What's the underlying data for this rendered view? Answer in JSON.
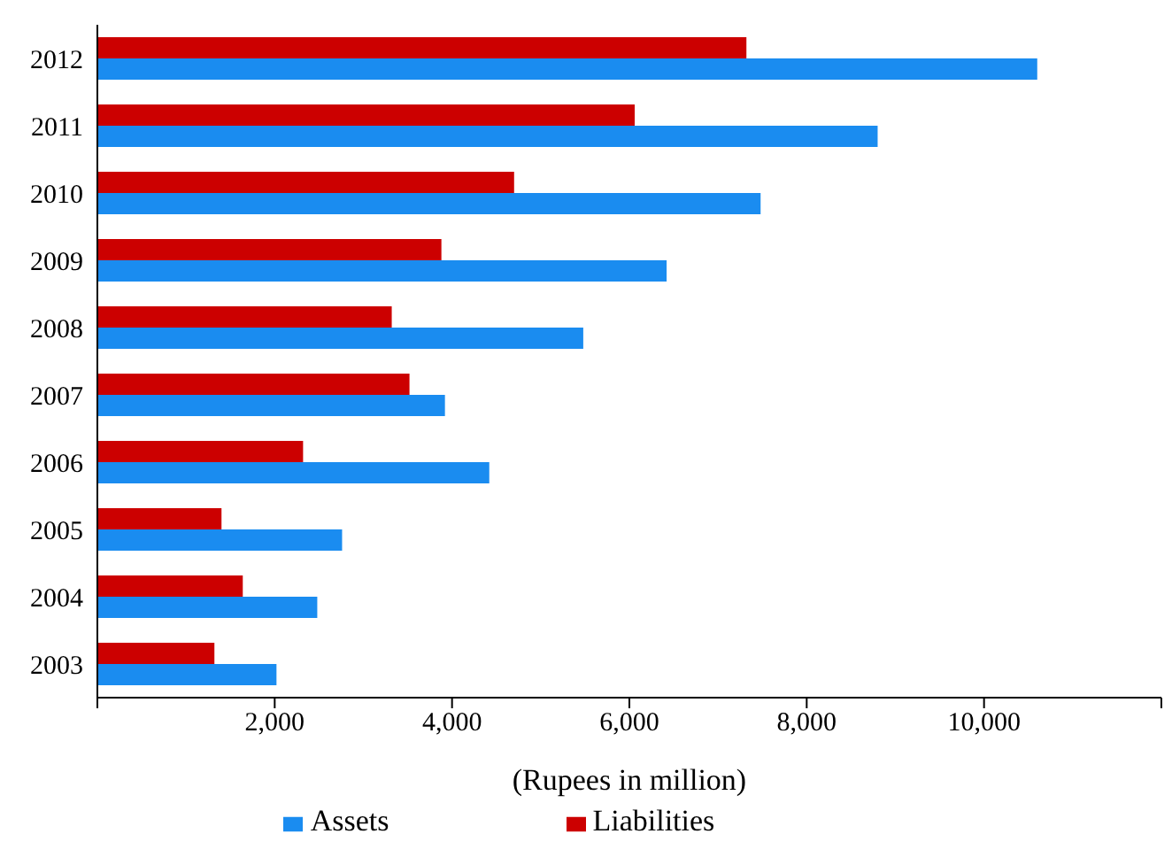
{
  "chart_data": {
    "type": "bar",
    "orientation": "horizontal",
    "categories": [
      "2012",
      "2011",
      "2010",
      "2009",
      "2008",
      "2007",
      "2006",
      "2005",
      "2004",
      "2003"
    ],
    "series": [
      {
        "name": "Assets",
        "color": "#1a8cf0",
        "values": [
          10600,
          8800,
          7480,
          6420,
          5480,
          3920,
          4420,
          2760,
          2480,
          2020
        ]
      },
      {
        "name": "Liabilities",
        "color": "#cc0000",
        "values": [
          7320,
          6060,
          4700,
          3880,
          3320,
          3520,
          2320,
          1400,
          1640,
          1320
        ]
      }
    ],
    "xlabel": "(Rupees in million)",
    "xlim": [
      0,
      12000
    ],
    "xticks": [
      {
        "value": 0,
        "label": null
      },
      {
        "value": 2000,
        "label": "2,000"
      },
      {
        "value": 4000,
        "label": "4,000"
      },
      {
        "value": 6000,
        "label": "6,000"
      },
      {
        "value": 8000,
        "label": "8,000"
      },
      {
        "value": 10000,
        "label": "10,000"
      },
      {
        "value": 12000,
        "label": null
      }
    ],
    "grid": false,
    "legend": "bottom"
  }
}
